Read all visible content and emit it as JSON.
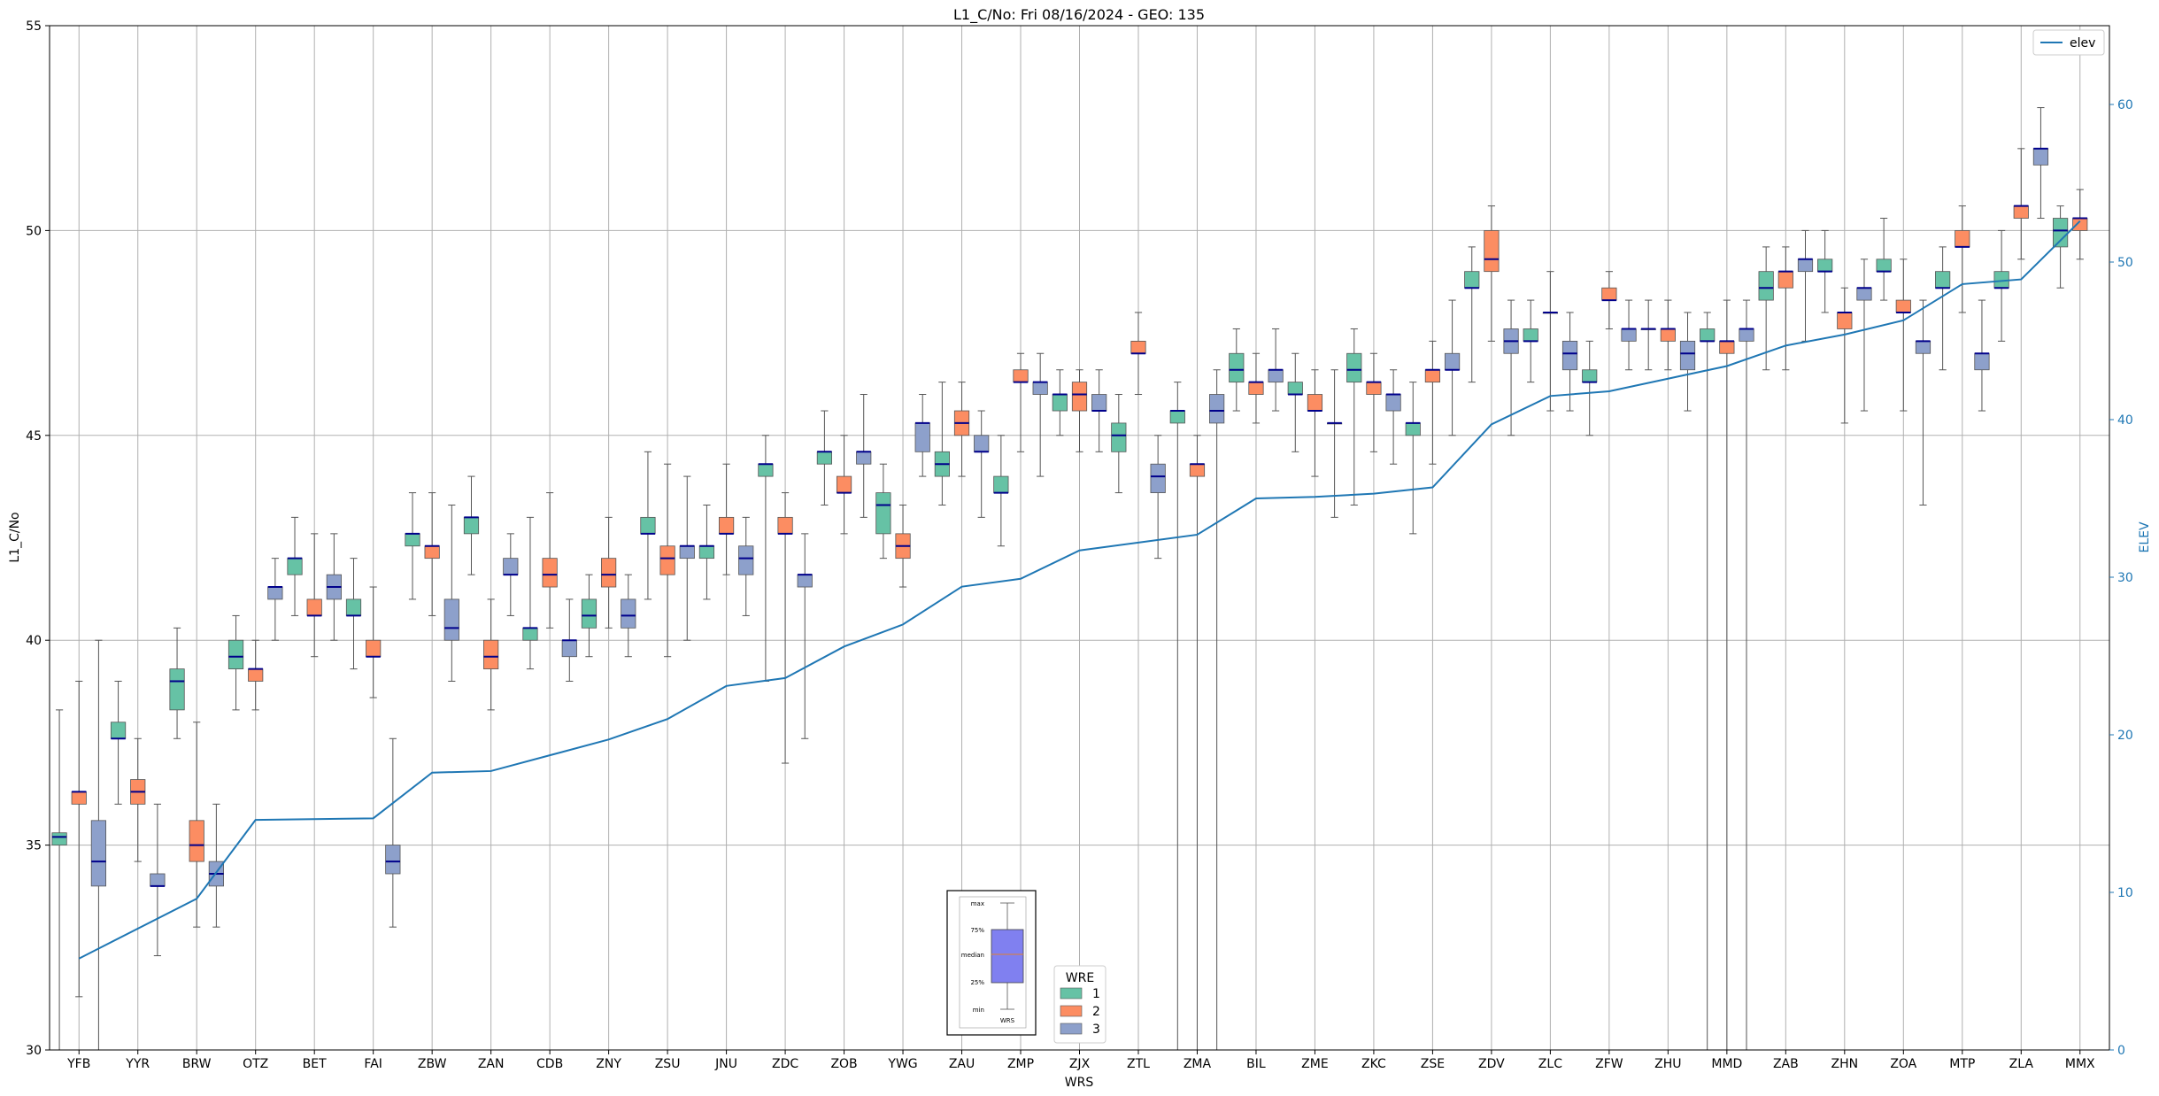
{
  "chart_data": {
    "type": "box",
    "title": "L1_C/No: Fri 08/16/2024 - GEO: 135",
    "xlabel": "WRS",
    "ylabel": "L1_C/No",
    "ylabel_right": "ELEV",
    "ylim": [
      30,
      55
    ],
    "ylim_right": [
      0,
      65
    ],
    "yticks": [
      30,
      35,
      40,
      45,
      50,
      55
    ],
    "yticks_right": [
      0,
      10,
      20,
      30,
      40,
      50,
      60
    ],
    "grid": true,
    "categories": [
      "YFB",
      "YYR",
      "BRW",
      "OTZ",
      "BET",
      "FAI",
      "ZBW",
      "ZAN",
      "CDB",
      "ZNY",
      "ZSU",
      "JNU",
      "ZDC",
      "ZOB",
      "YWG",
      "ZAU",
      "ZMP",
      "ZJX",
      "ZTL",
      "ZMA",
      "BIL",
      "ZME",
      "ZKC",
      "ZSE",
      "ZDV",
      "ZLC",
      "ZFW",
      "ZHU",
      "MMD",
      "ZAB",
      "ZHN",
      "ZOA",
      "MTP",
      "ZLA",
      "MMX"
    ],
    "wre_legend_title": "WRE",
    "wre_colors": {
      "1": "#66c2a5",
      "2": "#fc8d62",
      "3": "#8da0cb"
    },
    "wre_labels": [
      "1",
      "2",
      "3"
    ],
    "elev_label": "elev",
    "elev_color": "#1f77b4",
    "median_color": "#00008b",
    "elev": [
      5.8,
      9.6,
      14.6,
      14.7,
      17.6,
      17.7,
      18.7,
      19.7,
      21.0,
      23.1,
      23.6,
      25.6,
      27.0,
      29.4,
      29.9,
      31.7,
      32.2,
      32.7,
      35.0,
      35.1,
      35.3,
      35.7,
      39.7,
      41.5,
      41.8,
      42.6,
      43.4,
      44.7,
      45.4,
      46.3,
      48.6,
      48.9,
      52.6
    ],
    "elev_x": [
      0,
      2,
      3,
      5,
      6,
      7,
      8,
      9,
      10,
      11,
      12,
      13,
      14,
      15,
      16,
      17,
      18,
      19,
      20,
      21,
      22,
      23,
      24,
      25,
      26,
      27,
      28,
      29,
      30,
      31,
      32,
      33,
      34
    ],
    "boxes": [
      {
        "site": "YFB",
        "wre": 1,
        "min": 30.0,
        "q1": 35.0,
        "median": 35.2,
        "q3": 35.3,
        "max": 38.3
      },
      {
        "site": "YFB",
        "wre": 2,
        "min": 31.3,
        "q1": 36.0,
        "median": 36.3,
        "q3": 36.3,
        "max": 39.0
      },
      {
        "site": "YFB",
        "wre": 3,
        "min": 30.0,
        "q1": 34.0,
        "median": 34.6,
        "q3": 35.6,
        "max": 40.0
      },
      {
        "site": "YYR",
        "wre": 1,
        "min": 36.0,
        "q1": 37.6,
        "median": 37.6,
        "q3": 38.0,
        "max": 39.0
      },
      {
        "site": "YYR",
        "wre": 2,
        "min": 34.6,
        "q1": 36.0,
        "median": 36.3,
        "q3": 36.6,
        "max": 37.6
      },
      {
        "site": "YYR",
        "wre": 3,
        "min": 32.3,
        "q1": 34.0,
        "median": 34.0,
        "q3": 34.3,
        "max": 36.0
      },
      {
        "site": "BRW",
        "wre": 1,
        "min": 37.6,
        "q1": 38.3,
        "median": 39.0,
        "q3": 39.3,
        "max": 40.3
      },
      {
        "site": "BRW",
        "wre": 2,
        "min": 33.0,
        "q1": 34.6,
        "median": 35.0,
        "q3": 35.6,
        "max": 38.0
      },
      {
        "site": "BRW",
        "wre": 3,
        "min": 33.0,
        "q1": 34.0,
        "median": 34.3,
        "q3": 34.6,
        "max": 36.0
      },
      {
        "site": "OTZ",
        "wre": 1,
        "min": 38.3,
        "q1": 39.3,
        "median": 39.6,
        "q3": 40.0,
        "max": 40.6
      },
      {
        "site": "OTZ",
        "wre": 2,
        "min": 38.3,
        "q1": 39.0,
        "median": 39.3,
        "q3": 39.3,
        "max": 40.0
      },
      {
        "site": "OTZ",
        "wre": 3,
        "min": 40.0,
        "q1": 41.0,
        "median": 41.3,
        "q3": 41.3,
        "max": 42.0
      },
      {
        "site": "BET",
        "wre": 1,
        "min": 40.6,
        "q1": 41.6,
        "median": 42.0,
        "q3": 42.0,
        "max": 43.0
      },
      {
        "site": "BET",
        "wre": 2,
        "min": 39.6,
        "q1": 40.6,
        "median": 40.6,
        "q3": 41.0,
        "max": 42.6
      },
      {
        "site": "BET",
        "wre": 3,
        "min": 40.0,
        "q1": 41.0,
        "median": 41.3,
        "q3": 41.6,
        "max": 42.6
      },
      {
        "site": "FAI",
        "wre": 1,
        "min": 39.3,
        "q1": 40.6,
        "median": 40.6,
        "q3": 41.0,
        "max": 42.0
      },
      {
        "site": "FAI",
        "wre": 2,
        "min": 38.6,
        "q1": 39.6,
        "median": 39.6,
        "q3": 40.0,
        "max": 41.3
      },
      {
        "site": "FAI",
        "wre": 3,
        "min": 33.0,
        "q1": 34.3,
        "median": 34.6,
        "q3": 35.0,
        "max": 37.6
      },
      {
        "site": "ZBW",
        "wre": 1,
        "min": 41.0,
        "q1": 42.3,
        "median": 42.6,
        "q3": 42.6,
        "max": 43.6
      },
      {
        "site": "ZBW",
        "wre": 2,
        "min": 40.6,
        "q1": 42.0,
        "median": 42.3,
        "q3": 42.3,
        "max": 43.6
      },
      {
        "site": "ZBW",
        "wre": 3,
        "min": 39.0,
        "q1": 40.0,
        "median": 40.3,
        "q3": 41.0,
        "max": 43.3
      },
      {
        "site": "ZAN",
        "wre": 1,
        "min": 41.6,
        "q1": 42.6,
        "median": 43.0,
        "q3": 43.0,
        "max": 44.0
      },
      {
        "site": "ZAN",
        "wre": 2,
        "min": 38.3,
        "q1": 39.3,
        "median": 39.6,
        "q3": 40.0,
        "max": 41.0
      },
      {
        "site": "ZAN",
        "wre": 3,
        "min": 40.6,
        "q1": 41.6,
        "median": 41.6,
        "q3": 42.0,
        "max": 42.6
      },
      {
        "site": "CDB",
        "wre": 1,
        "min": 39.3,
        "q1": 40.0,
        "median": 40.3,
        "q3": 40.3,
        "max": 43.0
      },
      {
        "site": "CDB",
        "wre": 2,
        "min": 40.3,
        "q1": 41.3,
        "median": 41.6,
        "q3": 42.0,
        "max": 43.6
      },
      {
        "site": "CDB",
        "wre": 3,
        "min": 39.0,
        "q1": 39.6,
        "median": 40.0,
        "q3": 40.0,
        "max": 41.0
      },
      {
        "site": "ZNY",
        "wre": 1,
        "min": 39.6,
        "q1": 40.3,
        "median": 40.6,
        "q3": 41.0,
        "max": 41.6
      },
      {
        "site": "ZNY",
        "wre": 2,
        "min": 40.3,
        "q1": 41.3,
        "median": 41.6,
        "q3": 42.0,
        "max": 43.0
      },
      {
        "site": "ZNY",
        "wre": 3,
        "min": 39.6,
        "q1": 40.3,
        "median": 40.6,
        "q3": 41.0,
        "max": 41.6
      },
      {
        "site": "ZSU",
        "wre": 1,
        "min": 41.0,
        "q1": 42.6,
        "median": 42.6,
        "q3": 43.0,
        "max": 44.6
      },
      {
        "site": "ZSU",
        "wre": 2,
        "min": 39.6,
        "q1": 41.6,
        "median": 42.0,
        "q3": 42.3,
        "max": 44.3
      },
      {
        "site": "ZSU",
        "wre": 3,
        "min": 40.0,
        "q1": 42.0,
        "median": 42.3,
        "q3": 42.3,
        "max": 44.0
      },
      {
        "site": "JNU",
        "wre": 1,
        "min": 41.0,
        "q1": 42.0,
        "median": 42.3,
        "q3": 42.3,
        "max": 43.3
      },
      {
        "site": "JNU",
        "wre": 2,
        "min": 41.6,
        "q1": 42.6,
        "median": 42.6,
        "q3": 43.0,
        "max": 44.3
      },
      {
        "site": "JNU",
        "wre": 3,
        "min": 40.6,
        "q1": 41.6,
        "median": 42.0,
        "q3": 42.3,
        "max": 43.0
      },
      {
        "site": "ZDC",
        "wre": 1,
        "min": 39.0,
        "q1": 44.0,
        "median": 44.3,
        "q3": 44.3,
        "max": 45.0
      },
      {
        "site": "ZDC",
        "wre": 2,
        "min": 37.0,
        "q1": 42.6,
        "median": 42.6,
        "q3": 43.0,
        "max": 43.6
      },
      {
        "site": "ZDC",
        "wre": 3,
        "min": 37.6,
        "q1": 41.3,
        "median": 41.6,
        "q3": 41.6,
        "max": 42.6
      },
      {
        "site": "ZOB",
        "wre": 1,
        "min": 43.3,
        "q1": 44.3,
        "median": 44.6,
        "q3": 44.6,
        "max": 45.6
      },
      {
        "site": "ZOB",
        "wre": 2,
        "min": 42.6,
        "q1": 43.6,
        "median": 43.6,
        "q3": 44.0,
        "max": 45.0
      },
      {
        "site": "ZOB",
        "wre": 3,
        "min": 43.0,
        "q1": 44.3,
        "median": 44.6,
        "q3": 44.6,
        "max": 46.0
      },
      {
        "site": "YWG",
        "wre": 1,
        "min": 42.0,
        "q1": 42.6,
        "median": 43.3,
        "q3": 43.6,
        "max": 44.3
      },
      {
        "site": "YWG",
        "wre": 2,
        "min": 41.3,
        "q1": 42.0,
        "median": 42.3,
        "q3": 42.6,
        "max": 43.3
      },
      {
        "site": "YWG",
        "wre": 3,
        "min": 44.0,
        "q1": 44.6,
        "median": 45.3,
        "q3": 45.3,
        "max": 46.0
      },
      {
        "site": "ZAU",
        "wre": 1,
        "min": 43.3,
        "q1": 44.0,
        "median": 44.3,
        "q3": 44.6,
        "max": 46.3
      },
      {
        "site": "ZAU",
        "wre": 2,
        "min": 44.0,
        "q1": 45.0,
        "median": 45.3,
        "q3": 45.6,
        "max": 46.3
      },
      {
        "site": "ZAU",
        "wre": 3,
        "min": 43.0,
        "q1": 44.6,
        "median": 44.6,
        "q3": 45.0,
        "max": 45.6
      },
      {
        "site": "ZMP",
        "wre": 1,
        "min": 42.3,
        "q1": 43.6,
        "median": 43.6,
        "q3": 44.0,
        "max": 45.0
      },
      {
        "site": "ZMP",
        "wre": 2,
        "min": 44.6,
        "q1": 46.3,
        "median": 46.3,
        "q3": 46.6,
        "max": 47.0
      },
      {
        "site": "ZMP",
        "wre": 3,
        "min": 44.0,
        "q1": 46.0,
        "median": 46.3,
        "q3": 46.3,
        "max": 47.0
      },
      {
        "site": "ZJX",
        "wre": 1,
        "min": 45.0,
        "q1": 45.6,
        "median": 46.0,
        "q3": 46.0,
        "max": 46.6
      },
      {
        "site": "ZJX",
        "wre": 2,
        "min": 44.6,
        "q1": 45.6,
        "median": 46.0,
        "q3": 46.3,
        "max": 46.6
      },
      {
        "site": "ZJX",
        "wre": 3,
        "min": 44.6,
        "q1": 45.6,
        "median": 45.6,
        "q3": 46.0,
        "max": 46.6
      },
      {
        "site": "ZTL",
        "wre": 1,
        "min": 43.6,
        "q1": 44.6,
        "median": 45.0,
        "q3": 45.3,
        "max": 46.0
      },
      {
        "site": "ZTL",
        "wre": 2,
        "min": 46.0,
        "q1": 47.0,
        "median": 47.0,
        "q3": 47.3,
        "max": 48.0
      },
      {
        "site": "ZTL",
        "wre": 3,
        "min": 42.0,
        "q1": 43.6,
        "median": 44.0,
        "q3": 44.3,
        "max": 45.0
      },
      {
        "site": "ZMA",
        "wre": 1,
        "min": 30.0,
        "q1": 45.3,
        "median": 45.6,
        "q3": 45.6,
        "max": 46.3
      },
      {
        "site": "ZMA",
        "wre": 2,
        "min": 30.0,
        "q1": 44.0,
        "median": 44.3,
        "q3": 44.3,
        "max": 45.0
      },
      {
        "site": "ZMA",
        "wre": 3,
        "min": 30.0,
        "q1": 45.3,
        "median": 45.6,
        "q3": 46.0,
        "max": 46.6
      },
      {
        "site": "BIL",
        "wre": 1,
        "min": 45.6,
        "q1": 46.3,
        "median": 46.6,
        "q3": 47.0,
        "max": 47.6
      },
      {
        "site": "BIL",
        "wre": 2,
        "min": 45.3,
        "q1": 46.0,
        "median": 46.3,
        "q3": 46.3,
        "max": 47.0
      },
      {
        "site": "BIL",
        "wre": 3,
        "min": 45.6,
        "q1": 46.3,
        "median": 46.6,
        "q3": 46.6,
        "max": 47.6
      },
      {
        "site": "ZME",
        "wre": 1,
        "min": 44.6,
        "q1": 46.0,
        "median": 46.0,
        "q3": 46.3,
        "max": 47.0
      },
      {
        "site": "ZME",
        "wre": 2,
        "min": 44.0,
        "q1": 45.6,
        "median": 45.6,
        "q3": 46.0,
        "max": 46.6
      },
      {
        "site": "ZME",
        "wre": 3,
        "min": 43.0,
        "q1": 45.3,
        "median": 45.3,
        "q3": 45.3,
        "max": 46.6
      },
      {
        "site": "ZKC",
        "wre": 1,
        "min": 43.3,
        "q1": 46.3,
        "median": 46.6,
        "q3": 47.0,
        "max": 47.6
      },
      {
        "site": "ZKC",
        "wre": 2,
        "min": 44.6,
        "q1": 46.0,
        "median": 46.3,
        "q3": 46.3,
        "max": 47.0
      },
      {
        "site": "ZKC",
        "wre": 3,
        "min": 44.3,
        "q1": 45.6,
        "median": 46.0,
        "q3": 46.0,
        "max": 46.6
      },
      {
        "site": "ZSE",
        "wre": 1,
        "min": 42.6,
        "q1": 45.0,
        "median": 45.3,
        "q3": 45.3,
        "max": 46.3
      },
      {
        "site": "ZSE",
        "wre": 2,
        "min": 44.3,
        "q1": 46.3,
        "median": 46.6,
        "q3": 46.6,
        "max": 47.3
      },
      {
        "site": "ZSE",
        "wre": 3,
        "min": 45.0,
        "q1": 46.6,
        "median": 46.6,
        "q3": 47.0,
        "max": 48.3
      },
      {
        "site": "ZDV",
        "wre": 1,
        "min": 46.3,
        "q1": 48.6,
        "median": 48.6,
        "q3": 49.0,
        "max": 49.6
      },
      {
        "site": "ZDV",
        "wre": 2,
        "min": 47.3,
        "q1": 49.0,
        "median": 49.3,
        "q3": 50.0,
        "max": 50.6
      },
      {
        "site": "ZDV",
        "wre": 3,
        "min": 45.0,
        "q1": 47.0,
        "median": 47.3,
        "q3": 47.6,
        "max": 48.3
      },
      {
        "site": "ZLC",
        "wre": 1,
        "min": 46.3,
        "q1": 47.3,
        "median": 47.3,
        "q3": 47.6,
        "max": 48.3
      },
      {
        "site": "ZLC",
        "wre": 2,
        "min": 45.6,
        "q1": 48.0,
        "median": 48.0,
        "q3": 48.0,
        "max": 49.0
      },
      {
        "site": "ZLC",
        "wre": 3,
        "min": 45.6,
        "q1": 46.6,
        "median": 47.0,
        "q3": 47.3,
        "max": 48.0
      },
      {
        "site": "ZFW",
        "wre": 1,
        "min": 45.0,
        "q1": 46.3,
        "median": 46.3,
        "q3": 46.6,
        "max": 47.3
      },
      {
        "site": "ZFW",
        "wre": 2,
        "min": 47.6,
        "q1": 48.3,
        "median": 48.3,
        "q3": 48.6,
        "max": 49.0
      },
      {
        "site": "ZFW",
        "wre": 3,
        "min": 46.6,
        "q1": 47.3,
        "median": 47.6,
        "q3": 47.6,
        "max": 48.3
      },
      {
        "site": "ZHU",
        "wre": 1,
        "min": 46.6,
        "q1": 47.6,
        "median": 47.6,
        "q3": 47.6,
        "max": 48.3
      },
      {
        "site": "ZHU",
        "wre": 2,
        "min": 46.6,
        "q1": 47.3,
        "median": 47.6,
        "q3": 47.6,
        "max": 48.3
      },
      {
        "site": "ZHU",
        "wre": 3,
        "min": 45.6,
        "q1": 46.6,
        "median": 47.0,
        "q3": 47.3,
        "max": 48.0
      },
      {
        "site": "MMD",
        "wre": 1,
        "min": 30.0,
        "q1": 47.3,
        "median": 47.3,
        "q3": 47.6,
        "max": 48.0
      },
      {
        "site": "MMD",
        "wre": 2,
        "min": 30.0,
        "q1": 47.0,
        "median": 47.3,
        "q3": 47.3,
        "max": 48.3
      },
      {
        "site": "MMD",
        "wre": 3,
        "min": 30.0,
        "q1": 47.3,
        "median": 47.6,
        "q3": 47.6,
        "max": 48.3
      },
      {
        "site": "ZAB",
        "wre": 1,
        "min": 46.6,
        "q1": 48.3,
        "median": 48.6,
        "q3": 49.0,
        "max": 49.6
      },
      {
        "site": "ZAB",
        "wre": 2,
        "min": 46.6,
        "q1": 48.6,
        "median": 49.0,
        "q3": 49.0,
        "max": 49.6
      },
      {
        "site": "ZAB",
        "wre": 3,
        "min": 47.3,
        "q1": 49.0,
        "median": 49.3,
        "q3": 49.3,
        "max": 50.0
      },
      {
        "site": "ZHN",
        "wre": 1,
        "min": 48.0,
        "q1": 49.0,
        "median": 49.0,
        "q3": 49.3,
        "max": 50.0
      },
      {
        "site": "ZHN",
        "wre": 2,
        "min": 45.3,
        "q1": 47.6,
        "median": 48.0,
        "q3": 48.0,
        "max": 48.6
      },
      {
        "site": "ZHN",
        "wre": 3,
        "min": 45.6,
        "q1": 48.3,
        "median": 48.6,
        "q3": 48.6,
        "max": 49.3
      },
      {
        "site": "ZOA",
        "wre": 1,
        "min": 48.3,
        "q1": 49.0,
        "median": 49.0,
        "q3": 49.3,
        "max": 50.3
      },
      {
        "site": "ZOA",
        "wre": 2,
        "min": 45.6,
        "q1": 48.0,
        "median": 48.0,
        "q3": 48.3,
        "max": 49.3
      },
      {
        "site": "ZOA",
        "wre": 3,
        "min": 43.3,
        "q1": 47.0,
        "median": 47.3,
        "q3": 47.3,
        "max": 48.3
      },
      {
        "site": "MTP",
        "wre": 1,
        "min": 46.6,
        "q1": 48.6,
        "median": 48.6,
        "q3": 49.0,
        "max": 49.6
      },
      {
        "site": "MTP",
        "wre": 2,
        "min": 48.0,
        "q1": 49.6,
        "median": 49.6,
        "q3": 50.0,
        "max": 50.6
      },
      {
        "site": "MTP",
        "wre": 3,
        "min": 45.6,
        "q1": 46.6,
        "median": 47.0,
        "q3": 47.0,
        "max": 48.3
      },
      {
        "site": "ZLA",
        "wre": 1,
        "min": 47.3,
        "q1": 48.6,
        "median": 48.6,
        "q3": 49.0,
        "max": 50.0
      },
      {
        "site": "ZLA",
        "wre": 2,
        "min": 49.3,
        "q1": 50.3,
        "median": 50.6,
        "q3": 50.6,
        "max": 52.0
      },
      {
        "site": "ZLA",
        "wre": 3,
        "min": 50.3,
        "q1": 51.6,
        "median": 52.0,
        "q3": 52.0,
        "max": 53.0
      },
      {
        "site": "MMX",
        "wre": 1,
        "min": 48.6,
        "q1": 49.6,
        "median": 50.0,
        "q3": 50.3,
        "max": 50.6
      },
      {
        "site": "MMX",
        "wre": 2,
        "min": 49.3,
        "q1": 50.0,
        "median": 50.3,
        "q3": 50.3,
        "max": 51.0
      }
    ],
    "inset_key": {
      "labels": [
        "max",
        "75%",
        "median",
        "25%",
        "min"
      ],
      "xlabel": "WRS",
      "box_color": "#8080f0"
    },
    "legend_elev_position": "top-right",
    "legend_wre_position": "bottom-center"
  }
}
